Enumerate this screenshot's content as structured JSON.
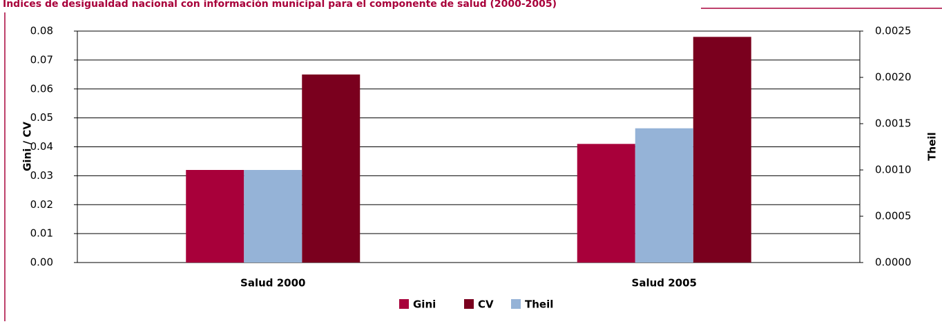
{
  "chart_data": {
    "type": "bar",
    "title": "Índices de desigualdad nacional con información municipal para el componente de salud (2000-2005)",
    "ylabel": "Gini / CV",
    "y2label": "Theil",
    "categories": [
      "Salud 2000",
      "Salud 2005"
    ],
    "series": [
      {
        "name": "Gini",
        "color": "#a8003a",
        "values": [
          0.032,
          0.041
        ]
      },
      {
        "name": "CV",
        "color": "#7a001e",
        "values": [
          0.065,
          0.078
        ]
      },
      {
        "name": "Theil",
        "color": "#95b3d7",
        "values": [
          0.001,
          0.00145
        ],
        "axis": "y2"
      }
    ],
    "ylim": [
      0,
      0.08
    ],
    "yticks": [
      {
        "value": 0,
        "label": "0.00"
      },
      0.01,
      0.02,
      0.03,
      0.04,
      0.05,
      0.06,
      0.07,
      0.08
    ],
    "y2lim": [
      0,
      0.0025
    ],
    "y2ticks": [
      {
        "value": 0,
        "label": "0.0000"
      },
      0.0005,
      {
        "value": 0.001,
        "label": "0.0010"
      },
      0.0015,
      {
        "value": 0.002,
        "label": "0.0020"
      },
      0.0025
    ],
    "grid": true,
    "legend": "bottom"
  }
}
